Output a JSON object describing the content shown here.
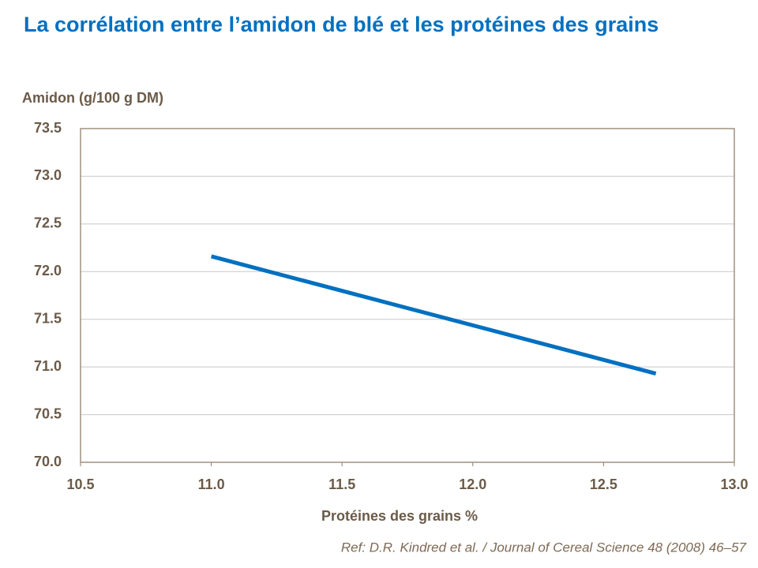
{
  "chart_data": {
    "type": "line",
    "title": "La corrélation entre l’amidon de blé et les protéines des grains",
    "y_label": "Amidon (g/100 g DM)",
    "x_label": "Protéines des grains %",
    "note": "Ref: D.R. Kindred et al. / Journal of Cereal Science 48 (2008) 46–57",
    "x": [
      11.0,
      12.7
    ],
    "values": [
      72.16,
      70.93
    ],
    "color": "#0070c0",
    "xlim": [
      10.5,
      13.0
    ],
    "xticks": [
      10.5,
      {
        "value": 11,
        "label": "11.0"
      },
      11.5,
      {
        "value": 12,
        "label": "12.0"
      },
      12.5,
      {
        "value": 13,
        "label": "13.0"
      }
    ],
    "ylim": [
      70.0,
      73.5
    ],
    "yticks": [
      {
        "value": 70,
        "label": "70.0"
      },
      70.5,
      {
        "value": 71,
        "label": "71.0"
      },
      71.5,
      {
        "value": 72,
        "label": "72.0"
      },
      72.5,
      {
        "value": 73,
        "label": "73.0"
      },
      73.5
    ],
    "grid": true
  }
}
